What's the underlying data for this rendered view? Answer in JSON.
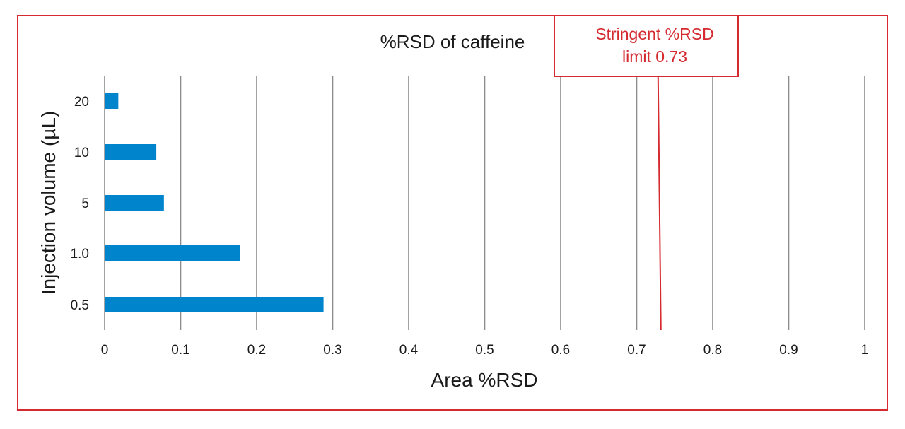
{
  "chart_data": {
    "type": "bar",
    "orientation": "horizontal",
    "title": "%RSD of caffeine",
    "xlabel": "Area %RSD",
    "ylabel": "Injection volume (µL)",
    "categories": [
      "20",
      "10",
      "5",
      "1.0",
      "0.5"
    ],
    "values": [
      0.018,
      0.068,
      0.078,
      0.178,
      0.288
    ],
    "xlim": [
      0,
      1
    ],
    "xticks": [
      "0",
      "0.1",
      "0.2",
      "0.3",
      "0.4",
      "0.5",
      "0.6",
      "0.7",
      "0.8",
      "0.9",
      "1"
    ],
    "grid": "vertical",
    "legend": "none",
    "bar_color": "#0085cc",
    "reference_line": {
      "value": 0.73,
      "color": "#d42a30",
      "label_lines": [
        "Stringent %RSD",
        "limit 0.73"
      ]
    },
    "frame_color": "#d42a30"
  }
}
